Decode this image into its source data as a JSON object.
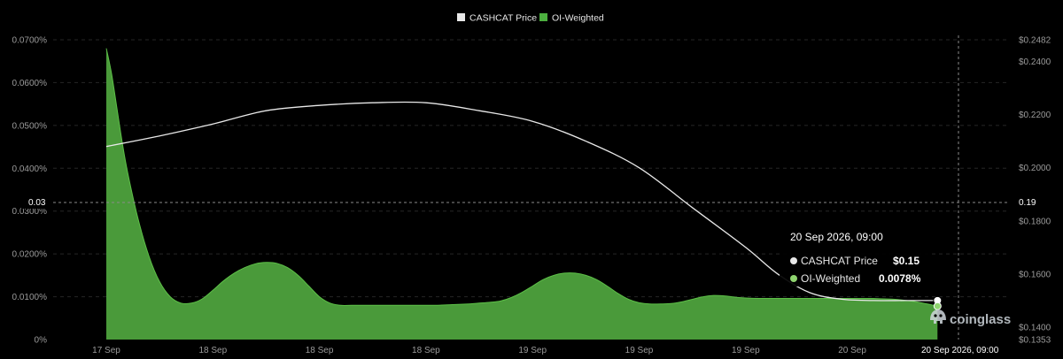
{
  "chart_data": {
    "type": "area",
    "legend": [
      {
        "name": "CASHCAT Price",
        "color": "#e8e8e8"
      },
      {
        "name": "OI-Weighted",
        "color": "#4caf3f"
      }
    ],
    "legend_position": "top-center",
    "x_ticks": [
      "17 Sep",
      "18 Sep",
      "18 Sep",
      "18 Sep",
      "19 Sep",
      "19 Sep",
      "19 Sep",
      "20 Sep"
    ],
    "y_left": {
      "ticks": [
        "0%",
        "0.0100%",
        "0.0200%",
        "0.0300%",
        "0.0400%",
        "0.0500%",
        "0.0600%",
        "0.0700%"
      ],
      "range": [
        0,
        0.07
      ]
    },
    "y_right": {
      "ticks": [
        "$0.1353",
        "$0.1400",
        "$0.1600",
        "$0.1800",
        "$0.2000",
        "$0.2200",
        "$0.2400",
        "$0.2482"
      ],
      "range": [
        0.1353,
        0.2482
      ]
    },
    "grid": true,
    "series": [
      {
        "name": "OI-Weighted",
        "axis": "left",
        "unit": "%",
        "x": [
          0,
          0.05,
          0.1,
          0.15,
          0.2,
          0.3,
          0.4,
          0.5,
          0.6,
          0.7,
          0.8,
          0.9,
          1.0,
          1.1,
          1.2,
          1.3,
          1.4,
          1.5,
          1.6,
          1.7,
          1.8,
          1.9,
          2.0,
          2.1,
          2.2,
          2.3,
          2.4,
          2.5,
          2.6,
          2.7,
          2.8,
          2.9,
          3.0,
          3.1,
          3.2,
          3.3,
          3.4,
          3.5,
          3.6,
          3.7,
          3.8,
          3.9,
          4.0,
          4.1,
          4.2,
          4.3,
          4.4,
          4.5,
          4.6,
          4.7,
          4.8,
          4.9,
          5.0,
          5.1,
          5.2,
          5.3,
          5.4,
          5.5,
          5.6,
          5.7,
          5.8,
          5.9,
          6.0,
          6.1,
          6.2,
          6.3,
          6.4,
          6.5,
          6.6,
          6.7,
          6.8,
          6.9,
          7.0,
          7.1,
          7.2,
          7.3,
          7.4,
          7.6,
          7.8
        ],
        "values": [
          0.068,
          0.062,
          0.054,
          0.046,
          0.039,
          0.028,
          0.0195,
          0.0135,
          0.01,
          0.0085,
          0.0085,
          0.0095,
          0.0115,
          0.0137,
          0.0155,
          0.0168,
          0.0177,
          0.018,
          0.0178,
          0.0168,
          0.015,
          0.0125,
          0.01,
          0.0085,
          0.008,
          0.008,
          0.008,
          0.008,
          0.008,
          0.008,
          0.008,
          0.008,
          0.008,
          0.008,
          0.0081,
          0.0082,
          0.0083,
          0.0085,
          0.0087,
          0.009,
          0.0098,
          0.011,
          0.0125,
          0.014,
          0.015,
          0.0155,
          0.0155,
          0.015,
          0.014,
          0.0125,
          0.0108,
          0.0094,
          0.0086,
          0.0083,
          0.0083,
          0.0084,
          0.0088,
          0.0094,
          0.01,
          0.0103,
          0.0102,
          0.0099,
          0.0097,
          0.0096,
          0.0096,
          0.0096,
          0.0096,
          0.0096,
          0.0096,
          0.0096,
          0.0096,
          0.0096,
          0.0096,
          0.0096,
          0.0096,
          0.0095,
          0.0094,
          0.0088,
          0.0078
        ]
      },
      {
        "name": "CASHCAT Price",
        "axis": "right",
        "unit": "$",
        "x": [
          0,
          0.5,
          1.0,
          1.5,
          2.0,
          2.5,
          3.0,
          3.5,
          4.0,
          4.5,
          5.0,
          5.5,
          6.0,
          6.3,
          6.6,
          6.9,
          7.2,
          7.5,
          7.8
        ],
        "values": [
          0.208,
          0.212,
          0.2165,
          0.2215,
          0.2235,
          0.2245,
          0.2245,
          0.2215,
          0.2175,
          0.21,
          0.2,
          0.185,
          0.17,
          0.16,
          0.153,
          0.1505,
          0.15,
          0.15,
          0.15
        ]
      }
    ],
    "crosshair": {
      "left_label": "0.03",
      "right_label": "0.19",
      "x_label": "20 Sep 2026, 09:00"
    },
    "tooltip": {
      "title": "20 Sep 2026, 09:00",
      "rows": [
        {
          "label": "CASHCAT Price",
          "value": "$0.15",
          "dot": "#e8e8e8"
        },
        {
          "label": "OI-Weighted",
          "value": "0.0078%",
          "dot": "#8fd46f"
        }
      ]
    },
    "watermark": "coinglass"
  }
}
